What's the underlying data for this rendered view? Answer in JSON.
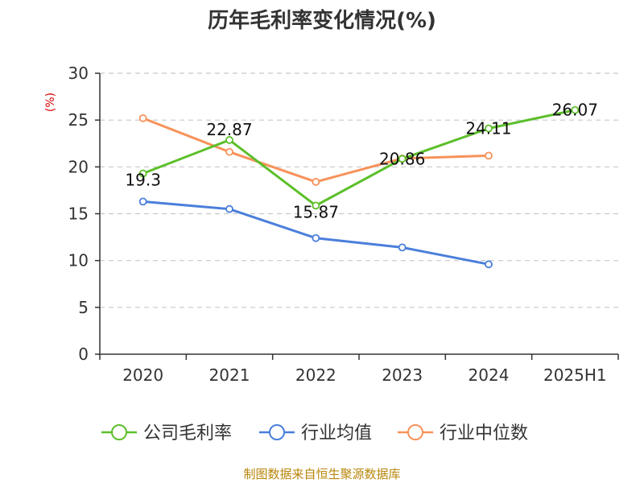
{
  "chart_data": {
    "type": "line",
    "title": "历年毛利率变化情况(%)",
    "ylabel": "(%)",
    "categories": [
      "2020",
      "2021",
      "2022",
      "2023",
      "2024",
      "2025H1"
    ],
    "ylim": [
      0,
      30
    ],
    "yticks": [
      "0",
      "5",
      "10",
      "15",
      "20",
      "25",
      "30"
    ],
    "grid": true,
    "legend_position": "bottom",
    "series": [
      {
        "name": "公司毛利率",
        "color": "#5cbf2a",
        "values": [
          19.3,
          22.87,
          15.87,
          20.86,
          24.11,
          26.07
        ],
        "labels": [
          "19.3",
          "22.87",
          "15.87",
          "20.86",
          "24.11",
          "26.07"
        ]
      },
      {
        "name": "行业均值",
        "color": "#4a7fdb",
        "values": [
          16.3,
          15.5,
          12.4,
          11.4,
          9.6,
          null
        ]
      },
      {
        "name": "行业中位数",
        "color": "#f7925a",
        "values": [
          25.2,
          21.6,
          18.4,
          20.9,
          21.2,
          null
        ]
      }
    ],
    "source": "制图数据来自恒生聚源数据库"
  }
}
